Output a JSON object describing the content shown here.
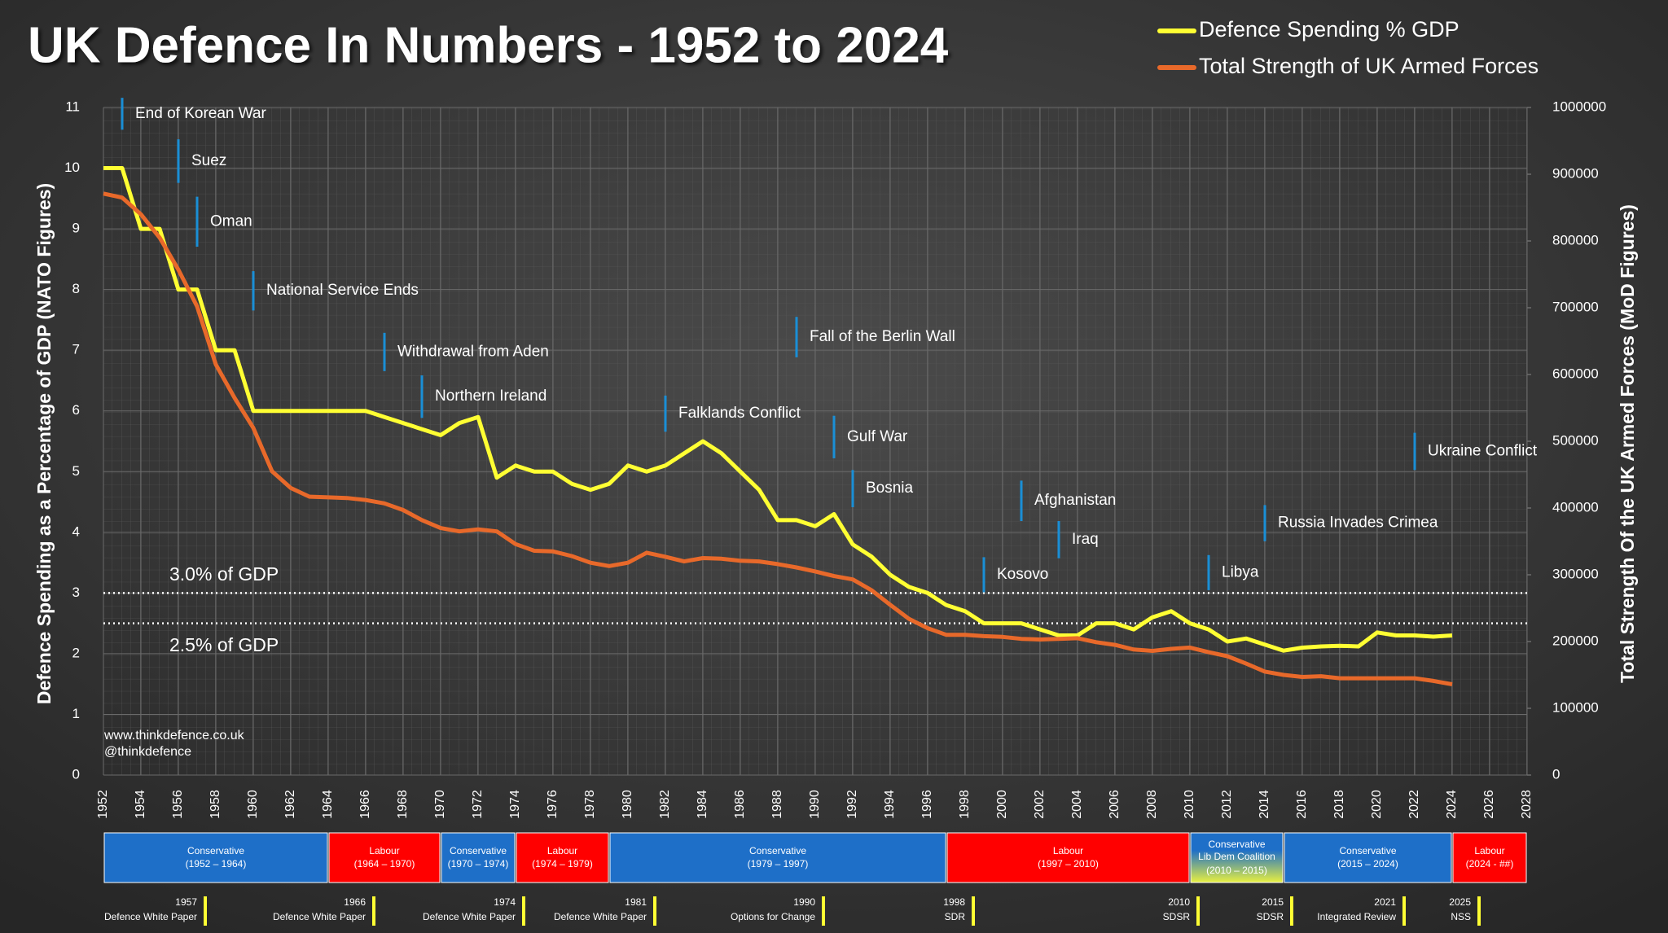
{
  "chart_data": {
    "type": "line",
    "title": "UK Defence In Numbers - 1952 to 2024",
    "y_label": "Defence Spending as a Percentage of GDP  (NATO Figures)",
    "y2_label": "Total Strength Of the UK Armed Forces (MoD Figures)",
    "legend": "top-right",
    "grid": true,
    "xlim": [
      1952,
      2028
    ],
    "xticks": [
      1952,
      1954,
      1956,
      1958,
      1960,
      1962,
      1964,
      1966,
      1968,
      1970,
      1972,
      1974,
      1976,
      1978,
      1980,
      1982,
      1984,
      1986,
      1988,
      1990,
      1992,
      1994,
      1996,
      1998,
      2000,
      2002,
      2004,
      2006,
      2008,
      2010,
      2012,
      2014,
      2016,
      2018,
      2020,
      2022,
      2024,
      2026,
      2028
    ],
    "ylim": [
      0,
      11
    ],
    "yticks": [
      0,
      1,
      2,
      3,
      4,
      5,
      6,
      7,
      8,
      9,
      10,
      11
    ],
    "y2lim": [
      0,
      1000000
    ],
    "y2ticks": [
      0,
      100000,
      200000,
      300000,
      400000,
      500000,
      600000,
      700000,
      800000,
      900000,
      1000000
    ],
    "x": [
      1952,
      1953,
      1954,
      1955,
      1956,
      1957,
      1958,
      1959,
      1960,
      1961,
      1962,
      1963,
      1964,
      1965,
      1966,
      1967,
      1968,
      1969,
      1970,
      1971,
      1972,
      1973,
      1974,
      1975,
      1976,
      1977,
      1978,
      1979,
      1980,
      1981,
      1982,
      1983,
      1984,
      1985,
      1986,
      1987,
      1988,
      1989,
      1990,
      1991,
      1992,
      1993,
      1994,
      1995,
      1996,
      1997,
      1998,
      1999,
      2000,
      2001,
      2002,
      2003,
      2004,
      2005,
      2006,
      2007,
      2008,
      2009,
      2010,
      2011,
      2012,
      2013,
      2014,
      2015,
      2016,
      2017,
      2018,
      2019,
      2020,
      2021,
      2022,
      2023,
      2024
    ],
    "series": [
      {
        "name": "Defence Spending % GDP",
        "color": "#ffff33",
        "values": [
          10,
          10,
          9,
          9,
          8,
          8,
          7,
          7,
          6,
          6,
          6,
          6,
          6,
          6,
          6,
          5.9,
          5.8,
          5.7,
          5.6,
          5.8,
          5.9,
          4.9,
          5.1,
          5.0,
          5.0,
          4.8,
          4.7,
          4.8,
          5.1,
          5.0,
          5.1,
          5.3,
          5.5,
          5.3,
          5.0,
          4.7,
          4.2,
          4.2,
          4.1,
          4.3,
          3.8,
          3.6,
          3.3,
          3.1,
          3.0,
          2.8,
          2.7,
          2.5,
          2.5,
          2.5,
          2.4,
          2.3,
          2.3,
          2.5,
          2.5,
          2.4,
          2.6,
          2.7,
          2.5,
          2.4,
          2.2,
          2.25,
          2.15,
          2.05,
          2.1,
          2.12,
          2.13,
          2.12,
          2.35,
          2.3,
          2.3,
          2.28,
          2.3
        ]
      },
      {
        "name": "Total Strength of UK Armed Forces",
        "color": "#e8692a",
        "axis": "y2",
        "values": [
          871000,
          865000,
          840000,
          805000,
          757000,
          702000,
          615000,
          565000,
          520000,
          455000,
          430000,
          417000,
          416000,
          415000,
          412000,
          407000,
          397000,
          382000,
          370000,
          365000,
          368000,
          365000,
          346000,
          336000,
          335000,
          328000,
          318000,
          313000,
          318000,
          333000,
          327000,
          320000,
          325000,
          324000,
          321000,
          320000,
          316000,
          311000,
          305000,
          298000,
          293000,
          277000,
          255000,
          234000,
          220000,
          210000,
          210000,
          208000,
          207000,
          204000,
          203000,
          204000,
          205000,
          199000,
          195000,
          188000,
          186000,
          189000,
          191000,
          184000,
          178000,
          167000,
          155000,
          150000,
          147000,
          148000,
          145000,
          145000,
          145000,
          145000,
          145000,
          141000,
          136000
        ]
      }
    ],
    "reference_lines": [
      {
        "value": 3.0,
        "label": "3.0% of GDP"
      },
      {
        "value": 2.5,
        "label": "2.5% of GDP"
      }
    ],
    "annotations": [
      {
        "text": "End of Korean War",
        "x": 1953
      },
      {
        "text": "Suez",
        "x": 1956
      },
      {
        "text": "Oman",
        "x": 1957
      },
      {
        "text": "National Service Ends",
        "x": 1960
      },
      {
        "text": "Withdrawal from Aden",
        "x": 1967
      },
      {
        "text": "Northern Ireland",
        "x": 1969
      },
      {
        "text": "Falklands Conflict",
        "x": 1982
      },
      {
        "text": "Fall of the Berlin Wall",
        "x": 1989
      },
      {
        "text": "Gulf War",
        "x": 1991
      },
      {
        "text": "Bosnia",
        "x": 1992
      },
      {
        "text": "Kosovo",
        "x": 1999
      },
      {
        "text": "Afghanistan",
        "x": 2001
      },
      {
        "text": "Iraq",
        "x": 2003
      },
      {
        "text": "Libya",
        "x": 2011
      },
      {
        "text": "Russia Invades Crimea",
        "x": 2014
      },
      {
        "text": "Ukraine Conflict",
        "x": 2022
      }
    ],
    "governments": [
      {
        "name": "Conservative",
        "years": "(1952 – 1964)",
        "x": [
          1952,
          1964
        ],
        "color": "#1e6fc8"
      },
      {
        "name": "Labour",
        "years": "(1964 – 1970)",
        "x": [
          1964,
          1970
        ],
        "color": "#ff0000"
      },
      {
        "name": "Conservative",
        "years": "(1970 – 1974)",
        "x": [
          1970,
          1974
        ],
        "color": "#1e6fc8"
      },
      {
        "name": "Labour",
        "years": "(1974 – 1979)",
        "x": [
          1974,
          1979
        ],
        "color": "#ff0000"
      },
      {
        "name": "Conservative",
        "years": "(1979 – 1997)",
        "x": [
          1979,
          1997
        ],
        "color": "#1e6fc8"
      },
      {
        "name": "Labour",
        "years": "(1997 – 2010)",
        "x": [
          1997,
          2010
        ],
        "color": "#ff0000"
      },
      {
        "name": "Conservative\nLib Dem Coalition",
        "years": "(2010 – 2015)",
        "x": [
          2010,
          2015
        ],
        "color": [
          "#1e6fc8",
          "#e8f040"
        ]
      },
      {
        "name": "Conservative",
        "years": "(2015 – 2024)",
        "x": [
          2015,
          2024
        ],
        "color": "#1e6fc8"
      },
      {
        "name": "Labour",
        "years": "(2024 - ##)",
        "x": [
          2024,
          2028
        ],
        "color": "#ff0000"
      }
    ],
    "reviews": [
      {
        "year": 1957,
        "title": "Defence White Paper"
      },
      {
        "year": 1966,
        "title": "Defence White Paper"
      },
      {
        "year": 1974,
        "title": "Defence White Paper"
      },
      {
        "year": 1981,
        "title": "Defence White Paper"
      },
      {
        "year": 1990,
        "title": "Options for Change"
      },
      {
        "year": 1998,
        "title": "SDR"
      },
      {
        "year": 2010,
        "title": "SDSR"
      },
      {
        "year": 2015,
        "title": "SDSR"
      },
      {
        "year": 2021,
        "title": "Integrated Review"
      },
      {
        "year": 2025,
        "title": "NSS"
      }
    ],
    "credits": [
      "www.thinkdefence.co.uk",
      "@thinkdefence"
    ]
  }
}
